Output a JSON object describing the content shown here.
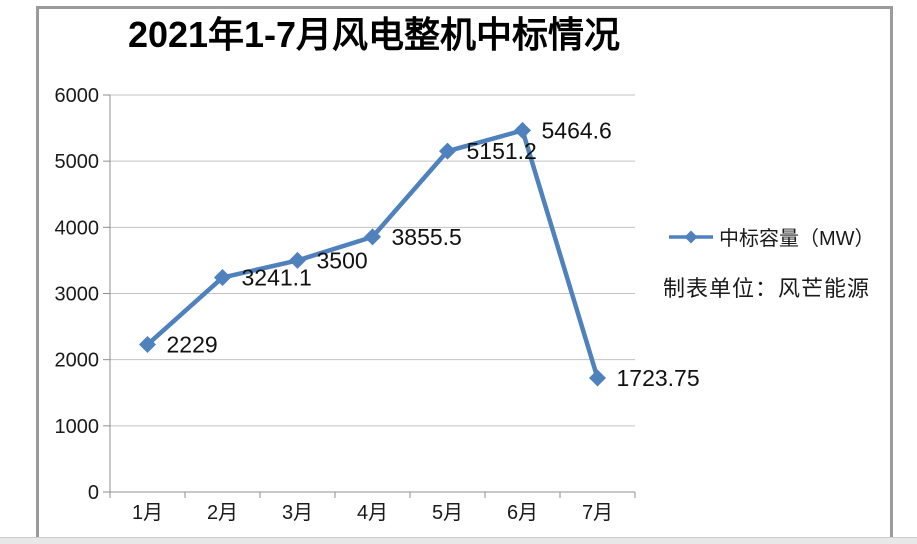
{
  "chart_data": {
    "type": "line",
    "title": "2021年1-7月风电整机中标情况",
    "categories": [
      "1月",
      "2月",
      "3月",
      "4月",
      "5月",
      "6月",
      "7月"
    ],
    "series": [
      {
        "name": "中标容量（MW）",
        "values": [
          2229,
          3241.1,
          3500,
          3855.5,
          5151.2,
          5464.6,
          1723.75
        ],
        "color": "#4F81BD"
      }
    ],
    "data_labels": [
      "2229",
      "3241.1",
      "3500",
      "3855.5",
      "5151.2",
      "5464.6",
      "1723.75"
    ],
    "xlabel": "",
    "ylabel": "",
    "ylim": [
      0,
      6000
    ],
    "ytick_step": 1000,
    "ytick_labels": [
      "0",
      "1000",
      "2000",
      "3000",
      "4000",
      "5000",
      "6000"
    ],
    "grid": "horizontal",
    "legend_position": "right",
    "annotation": "制表单位：风芒能源",
    "colors": {
      "series": "#4F81BD",
      "gridline": "#C3C3C3",
      "axis": "#8F8F8F",
      "tick_label": "#1A1A1A",
      "data_label": "#111111",
      "title": "#000000"
    }
  },
  "legend": {
    "label": "中标容量（MW）"
  },
  "note": {
    "text": "制表单位：风芒能源"
  },
  "window": {
    "frame_border_color": "#9B9B9B",
    "bottom_strip_color": "#E8E8E8"
  }
}
